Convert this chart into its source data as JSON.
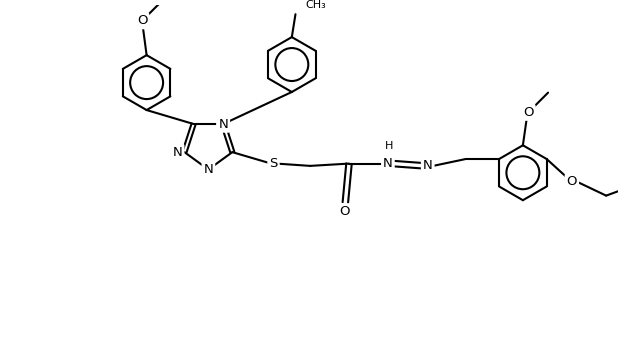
{
  "bg": "#ffffff",
  "lc": "#000000",
  "lw": 1.5,
  "fs": 9.5,
  "fs_small": 8.0,
  "figsize": [
    6.41,
    3.48
  ],
  "dpi": 100,
  "xlim": [
    -1.5,
    11.5
  ],
  "ylim": [
    -1.0,
    6.5
  ]
}
